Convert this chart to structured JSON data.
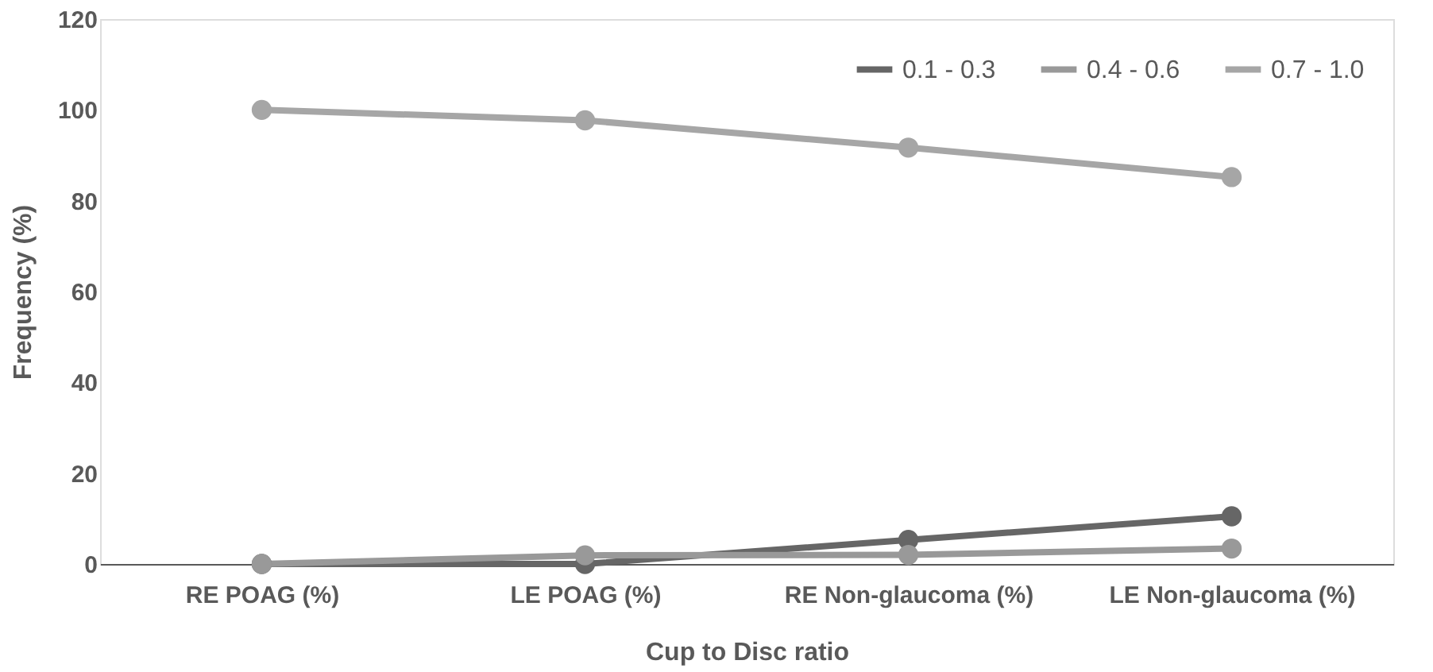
{
  "chart_data": {
    "type": "line",
    "xlabel": "Cup to Disc ratio",
    "ylabel": "Frequency (%)",
    "categories": [
      "RE POAG (%)",
      "LE POAG (%)",
      "RE Non-glaucoma (%)",
      "LE Non-glaucoma (%)"
    ],
    "series": [
      {
        "name": "0.1 - 0.3",
        "color": "#666666",
        "values": [
          0,
          0,
          5.3,
          10.5
        ]
      },
      {
        "name": "0.4 - 0.6",
        "color": "#999999",
        "values": [
          0,
          1.9,
          2,
          3.4
        ]
      },
      {
        "name": "0.7 - 1.0",
        "color": "#a6a6a6",
        "values": [
          100,
          97.7,
          91.7,
          85.2
        ]
      }
    ],
    "ylim": [
      0,
      120
    ],
    "yticks": [
      0,
      20,
      40,
      60,
      80,
      100,
      120
    ],
    "grid": false,
    "legend": "top right",
    "marker": "circle",
    "line_style": "solid"
  }
}
